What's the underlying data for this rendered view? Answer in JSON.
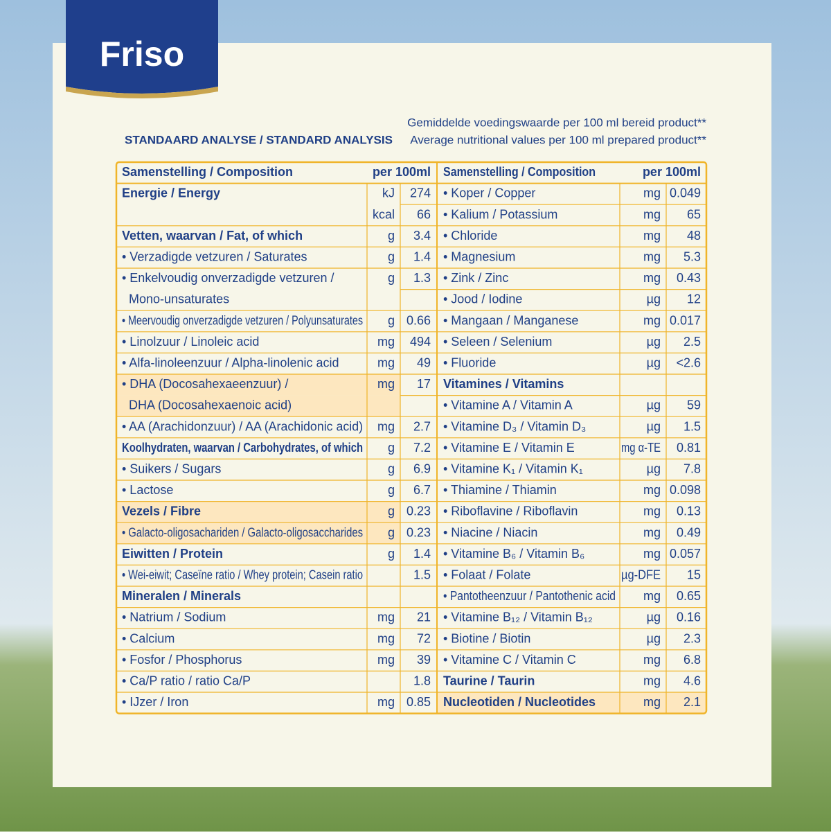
{
  "header": {
    "logo": "Friso",
    "heading": "STANDAARD ANALYSE / STANDARD ANALYSIS",
    "subtitle": [
      "Gemiddelde voedingswaarde per 100 ml bereid product**",
      "Average nutritional values per 100 ml prepared product**"
    ]
  },
  "table": {
    "left": {
      "header": [
        "Samenstelling / Composition",
        "per 100ml"
      ],
      "rows": [
        [
          "Energie / Energy",
          "kJ",
          "274"
        ],
        [
          null,
          "kcal",
          "66"
        ],
        [
          "Vetten, waarvan / Fat, of which",
          "g",
          "3.4"
        ],
        [
          "• Verzadigde vetzuren / Saturates",
          "g",
          "1.4"
        ],
        [
          "• Enkelvoudig onverzadigde vetzuren /",
          "g",
          "1.3"
        ],
        [
          "Mono-unsaturates"
        ],
        [
          "• Meervoudig onverzadigde vetzuren / Polyunsaturates",
          "g",
          "0.66"
        ],
        [
          "• Linolzuur / Linoleic acid",
          "mg",
          "494"
        ],
        [
          "• Alfa-linoleenzuur / Alpha-linolenic acid",
          "mg",
          "49"
        ],
        [
          "• DHA (Docosahexaeenzuur) /",
          "mg",
          "17"
        ],
        [
          "DHA (Docosahexaenoic acid)"
        ],
        [
          "• AA (Arachidonzuur) / AA (Arachidonic acid)",
          "mg",
          "2.7"
        ],
        [
          "Koolhydraten, waarvan / Carbohydrates, of which",
          "g",
          "7.2"
        ],
        [
          "• Suikers / Sugars",
          "g",
          "6.9"
        ],
        [
          "• Lactose",
          "g",
          "6.7"
        ],
        [
          "Vezels / Fibre",
          "g",
          "0.23"
        ],
        [
          "• Galacto-oligosachariden / Galacto-oligosaccharides",
          "g",
          "0.23"
        ],
        [
          "Eiwitten / Protein",
          "g",
          "1.4"
        ],
        [
          "• Wei-eiwit; Caseïne ratio / Whey protein; Casein ratio",
          null,
          "1.5"
        ],
        [
          "Mineralen / Minerals"
        ],
        [
          "• Natrium / Sodium",
          "mg",
          "21"
        ],
        [
          "• Calcium",
          "mg",
          "72"
        ],
        [
          "• Fosfor / Phosphorus",
          "mg",
          "39"
        ],
        [
          "• Ca/P ratio / ratio Ca/P",
          null,
          "1.8"
        ],
        [
          "• IJzer / Iron",
          "mg",
          "0.85"
        ]
      ]
    },
    "right": {
      "header": [
        "Samenstelling / Composition",
        "per 100ml"
      ],
      "rows": [
        [
          "• Koper / Copper",
          "mg",
          "0.049"
        ],
        [
          "• Kalium / Potassium",
          "mg",
          "65"
        ],
        [
          "• Chloride",
          "mg",
          "48"
        ],
        [
          "• Magnesium",
          "mg",
          "5.3"
        ],
        [
          "• Zink / Zinc",
          "mg",
          "0.43"
        ],
        [
          "• Jood / Iodine",
          "µg",
          "12"
        ],
        [
          "• Mangaan / Manganese",
          "mg",
          "0.017"
        ],
        [
          "• Seleen / Selenium",
          "µg",
          "2.5"
        ],
        [
          "• Fluoride",
          "µg",
          "<2.6"
        ],
        [
          "Vitamines / Vitamins"
        ],
        [
          "• Vitamine A / Vitamin A",
          "µg",
          "59"
        ],
        [
          "• Vitamine D₃ / Vitamin D₃",
          "µg",
          "1.5"
        ],
        [
          "• Vitamine E / Vitamin E",
          "mg α-TE",
          "0.81"
        ],
        [
          "• Vitamine K₁ / Vitamin K₁",
          "µg",
          "7.8"
        ],
        [
          "• Thiamine / Thiamin",
          "mg",
          "0.098"
        ],
        [
          "• Riboflavine / Riboflavin",
          "mg",
          "0.13"
        ],
        [
          "• Niacine / Niacin",
          "mg",
          "0.49"
        ],
        [
          "• Vitamine B₆ / Vitamin B₆",
          "mg",
          "0.057"
        ],
        [
          "• Folaat / Folate",
          "µg-DFE",
          "15"
        ],
        [
          "• Pantotheenzuur / Pantothenic acid",
          "mg",
          "0.65"
        ],
        [
          "• Vitamine B₁₂ / Vitamin B₁₂",
          "µg",
          "0.16"
        ],
        [
          "• Biotine / Biotin",
          "µg",
          "2.3"
        ],
        [
          "• Vitamine C / Vitamin C",
          "mg",
          "6.8"
        ],
        [
          "Taurine / Taurin",
          "mg",
          "4.6"
        ],
        [
          "Nucleotiden / Nucleotides",
          "mg",
          "2.1"
        ]
      ]
    }
  }
}
